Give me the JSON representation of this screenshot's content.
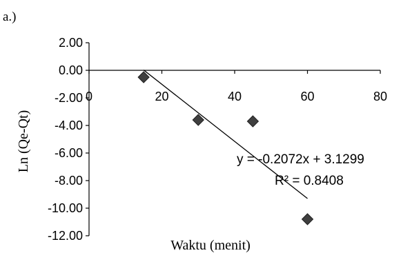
{
  "panel_label": "a.)",
  "chart_data": {
    "type": "scatter",
    "title": "",
    "xlabel": "Waktu (menit)",
    "ylabel": "Ln (Qe-Qt)",
    "xlim": [
      0,
      80
    ],
    "ylim": [
      -12,
      2
    ],
    "x_ticks": [
      "0",
      "20",
      "40",
      "60",
      "80"
    ],
    "y_ticks": [
      "2.00",
      "0.00",
      "-2.00",
      "-4.00",
      "-6.00",
      "-8.00",
      "-10.00",
      "-12.00"
    ],
    "points": [
      {
        "x": 15,
        "y": -0.5
      },
      {
        "x": 30,
        "y": -3.6
      },
      {
        "x": 45,
        "y": -3.7
      },
      {
        "x": 60,
        "y": -10.8
      }
    ],
    "trendline": {
      "slope": -0.2072,
      "intercept": 3.1299,
      "x_start": 15,
      "x_end": 60
    },
    "equation": "y = -0.2072x + 3.1299",
    "r_squared": "R² = 0.8408",
    "marker_color": "#3f3f3f",
    "line_color": "#000000",
    "grid": false
  }
}
